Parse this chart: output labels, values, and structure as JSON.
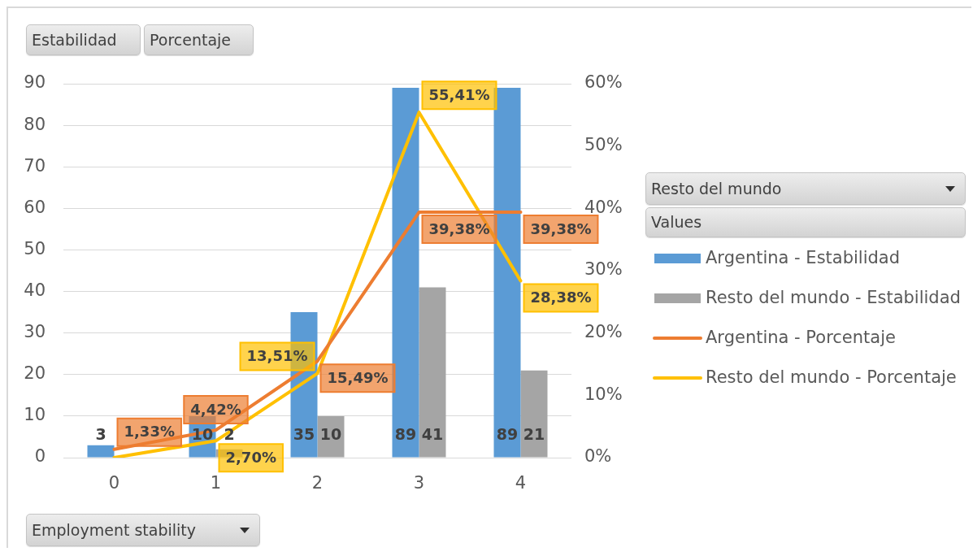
{
  "chart_data": {
    "type": "bar",
    "categories": [
      "0",
      "1",
      "2",
      "3",
      "4"
    ],
    "series": [
      {
        "name": "Argentina - Estabilidad",
        "color": "#5b9bd5",
        "values": [
          3,
          10,
          35,
          89,
          89
        ],
        "value_labels": [
          "3",
          "10",
          "35",
          "89",
          "89"
        ]
      },
      {
        "name": "Resto del mundo - Estabilidad",
        "color": "#a5a5a5",
        "values": [
          null,
          2,
          10,
          41,
          21
        ],
        "value_labels": [
          null,
          "2",
          "10",
          "41",
          "21"
        ]
      },
      {
        "name": "Argentina - Porcentaje",
        "type": "line",
        "axis": "y2",
        "color": "#ed7d31",
        "values": [
          1.33,
          4.42,
          15.49,
          39.38,
          39.38
        ],
        "value_labels": [
          "1,33%",
          "4,42%",
          "15,49%",
          "39,38%",
          "39,38%"
        ]
      },
      {
        "name": "Resto del mundo - Porcentaje",
        "type": "line",
        "axis": "y2",
        "color": "#ffc000",
        "values": [
          0,
          2.7,
          13.51,
          55.41,
          28.38
        ],
        "value_labels": [
          null,
          "2,70%",
          "13,51%",
          "55,41%",
          "28,38%"
        ]
      }
    ],
    "ylim": [
      0,
      90
    ],
    "yticks": [
      0,
      10,
      20,
      30,
      40,
      50,
      60,
      70,
      80,
      90
    ],
    "y2lim": [
      0,
      60
    ],
    "y2ticks": [
      {
        "value": 0,
        "label": "0%"
      },
      {
        "value": 10,
        "label": "10%"
      },
      {
        "value": 20,
        "label": "20%"
      },
      {
        "value": 30,
        "label": "30%"
      },
      {
        "value": 40,
        "label": "40%"
      },
      {
        "value": 50,
        "label": "50%"
      },
      {
        "value": 60,
        "label": "60%"
      }
    ],
    "grid": "y",
    "legend": "right",
    "xlabel": "Employment stability",
    "annotations": [
      "Estabilidad",
      "Porcentaje",
      "Resto del mundo",
      "Values"
    ]
  }
}
